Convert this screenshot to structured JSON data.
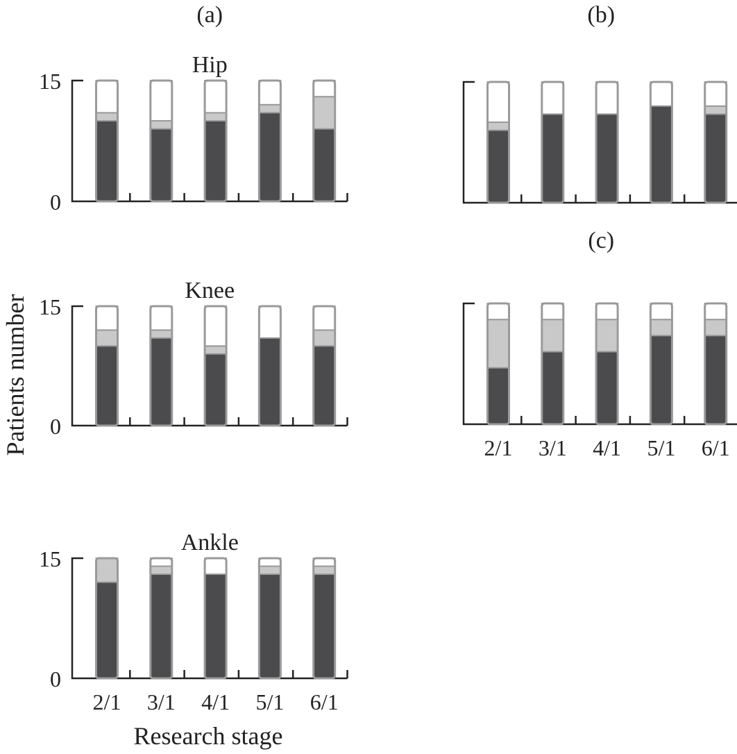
{
  "chart_data": {
    "type": "bar",
    "stacked": true,
    "ylabel": "Patients number",
    "xlabel": "Research stage",
    "categories": [
      "2/1",
      "3/1",
      "4/1",
      "5/1",
      "6/1"
    ],
    "ylim": [
      0,
      15
    ],
    "yticks": [
      "0",
      "15"
    ],
    "colors": {
      "dark": "#4b4b4d",
      "gray": "#c9c9c9",
      "white": "#ffffff",
      "outline": "#9a9a9a",
      "axis": "#222222"
    },
    "panels": [
      {
        "label": "(a)",
        "title": "Hip",
        "series": [
          {
            "color_key": "dark",
            "values": [
              10,
              9,
              10,
              11,
              9
            ]
          },
          {
            "color_key": "gray",
            "values": [
              1,
              1,
              1,
              1,
              4
            ]
          },
          {
            "color_key": "white",
            "values": [
              4,
              5,
              4,
              3,
              2
            ]
          }
        ]
      },
      {
        "label": "",
        "title": "Knee",
        "series": [
          {
            "color_key": "dark",
            "values": [
              10,
              11,
              9,
              11,
              10
            ]
          },
          {
            "color_key": "gray",
            "values": [
              2,
              1,
              1,
              0,
              2
            ]
          },
          {
            "color_key": "white",
            "values": [
              3,
              3,
              5,
              4,
              3
            ]
          }
        ]
      },
      {
        "label": "",
        "title": "Ankle",
        "series": [
          {
            "color_key": "dark",
            "values": [
              12,
              13,
              13,
              13,
              13
            ]
          },
          {
            "color_key": "gray",
            "values": [
              3,
              1,
              0,
              1,
              1
            ]
          },
          {
            "color_key": "white",
            "values": [
              0,
              1,
              2,
              1,
              1
            ]
          }
        ]
      },
      {
        "label": "(b)",
        "title": "",
        "series": [
          {
            "color_key": "dark",
            "values": [
              9,
              11,
              11,
              12,
              11
            ]
          },
          {
            "color_key": "gray",
            "values": [
              1,
              0,
              0,
              0,
              1
            ]
          },
          {
            "color_key": "white",
            "values": [
              5,
              4,
              4,
              3,
              3
            ]
          }
        ]
      },
      {
        "label": "(c)",
        "title": "",
        "series": [
          {
            "color_key": "dark",
            "values": [
              7,
              9,
              9,
              11,
              11
            ]
          },
          {
            "color_key": "gray",
            "values": [
              6,
              4,
              4,
              2,
              2
            ]
          },
          {
            "color_key": "white",
            "values": [
              2,
              2,
              2,
              2,
              2
            ]
          }
        ]
      }
    ]
  }
}
